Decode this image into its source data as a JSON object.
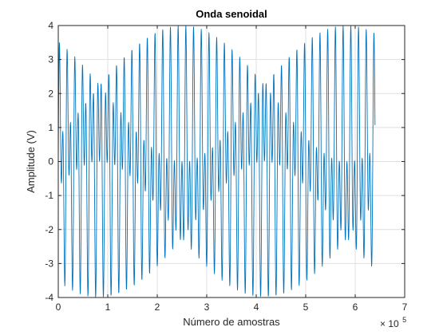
{
  "chart_data": {
    "type": "line",
    "title": "Onda senoidal",
    "xlabel": "Número de amostras",
    "ylabel": "Amplitude (V)",
    "xlim": [
      0,
      7
    ],
    "ylim": [
      -4,
      4
    ],
    "x_exponent_base": "× 10",
    "x_exponent_power": "5",
    "x_ticks": [
      0,
      1,
      2,
      3,
      4,
      5,
      6,
      7
    ],
    "y_ticks": [
      -4,
      -3,
      -2,
      -1,
      0,
      1,
      2,
      3,
      4
    ],
    "grid": true,
    "line_color": "#0072BD",
    "grid_color": "#DFDFDF",
    "axis_color": "#262626",
    "series": [
      {
        "signal": {
          "form": "sum of sines",
          "components": [
            {
              "amplitude": 2,
              "cycles_per_unit": 12.9
            },
            {
              "amplitude": 2,
              "cycles_per_unit": 6.3
            }
          ]
        },
        "x_range": [
          0,
          6.4
        ],
        "samples": 1400
      }
    ]
  }
}
